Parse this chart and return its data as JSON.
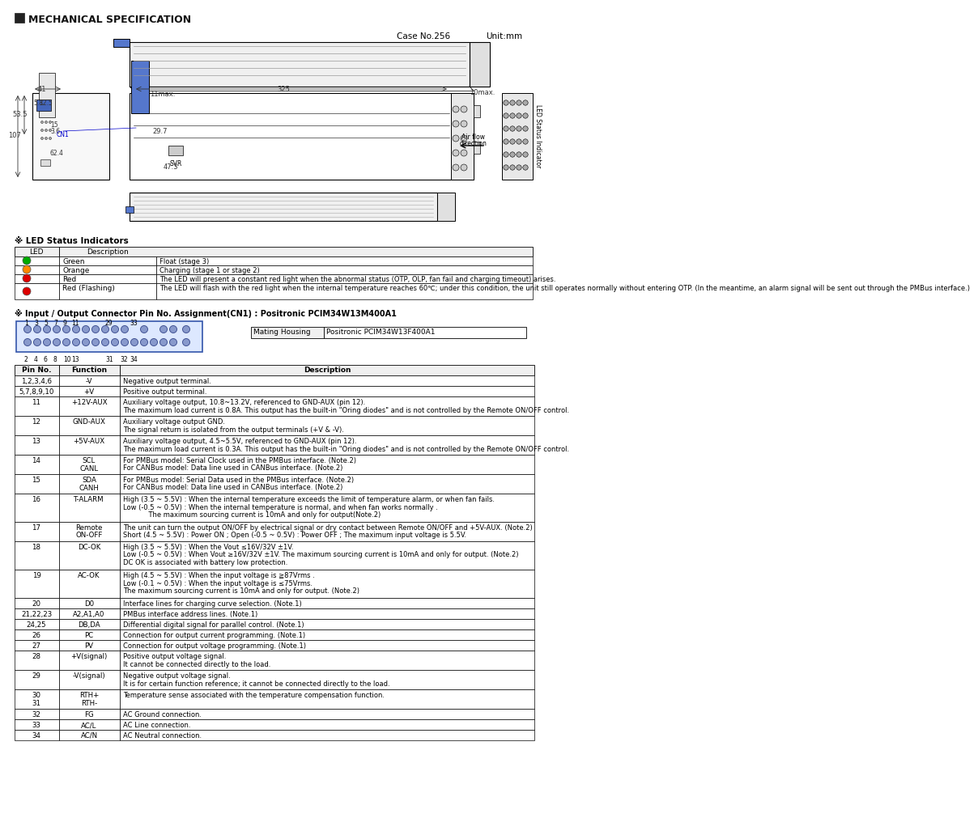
{
  "title": "MECHANICAL SPECIFICATION",
  "case_no": "Case No.256",
  "unit": "Unit:mm",
  "bg_color": "#ffffff",
  "header_bg": "#222222",
  "header_text_color": "#ffffff",
  "border_color": "#000000",
  "led_section_title": "※ LED Status Indicators",
  "led_rows": [
    {
      "color": "#00aa00",
      "name": "Green",
      "desc": "Float (stage 3)"
    },
    {
      "color": "#ff8800",
      "name": "Orange",
      "desc": "Charging (stage 1 or stage 2)"
    },
    {
      "color": "#dd0000",
      "name": "Red",
      "desc": "The LED will present a constant red light when the abnormal status (OTP, OLP, fan fail and charging timeout) arises."
    },
    {
      "color": "#dd0000",
      "name": "Red (Flashing)",
      "desc": "The LED will flash with the red light when the internal temperature reaches 60℃; under this condition, the unit still operates normally without entering OTP. (In the meantime, an alarm signal will be sent out through the PMBus interface.)"
    }
  ],
  "connector_title": "※ Input / Output Connector Pin No. Assignment(CN1) : Positronic PCIM34W13M400A1",
  "mating_housing_label": "Mating Housing",
  "mating_housing_value": "Positronic PCIM34W13F400A1",
  "pin_top_labels": [
    "1",
    "3",
    "5",
    "7",
    "9",
    "11",
    "",
    "29",
    "",
    "33"
  ],
  "pin_bottom_labels": [
    "2",
    "4",
    "6",
    "8",
    "10",
    "13",
    "",
    "31",
    "32",
    "",
    "34"
  ],
  "table_headers": [
    "Pin No.",
    "Function",
    "Description"
  ],
  "table_rows": [
    [
      "1,2,3,4,6",
      "-V",
      "Negative output terminal."
    ],
    [
      "5,7,8,9,10",
      "+V",
      "Positive output terminal."
    ],
    [
      "11",
      "+12V-AUX",
      "Auxiliary voltage output, 10.8~13.2V, referenced to GND-AUX (pin 12).\nThe maximum load current is 0.8A. This output has the built-in \"Oring diodes\" and is not controlled by the Remote ON/OFF control."
    ],
    [
      "12",
      "GND-AUX",
      "Auxiliary voltage output GND.\nThe signal return is isolated from the output terminals (+V & -V)."
    ],
    [
      "13",
      "+5V-AUX",
      "Auxiliary voltage output, 4.5~5.5V, referenced to GND-AUX (pin 12).\nThe maximum load current is 0.3A. This output has the built-in \"Oring diodes\" and is not controlled by the Remote ON/OFF control."
    ],
    [
      "14",
      "SCL\nCANL",
      "For PMBus model: Serial Clock used in the PMBus interface. (Note.2)\nFor CANBus model: Data line used in CANBus interface. (Note.2)"
    ],
    [
      "15",
      "SDA\nCANH",
      "For PMBus model: Serial Data used in the PMBus interface. (Note.2)\nFor CANBus model: Data line used in CANBus interface. (Note.2)"
    ],
    [
      "16",
      "T-ALARM",
      "High (3.5 ~ 5.5V) : When the internal temperature exceeds the limit of temperature alarm, or when fan fails.\nLow (-0.5 ~ 0.5V) : When the internal temperature is normal, and when fan works normally .\n            The maximum sourcing current is 10mA and only for output(Note.2)"
    ],
    [
      "17",
      "Remote\nON-OFF",
      "The unit can turn the output ON/OFF by electrical signal or dry contact between Remote ON/OFF and +5V-AUX. (Note.2)\nShort (4.5 ~ 5.5V) : Power ON ; Open (-0.5 ~ 0.5V) : Power OFF ; The maximum input voltage is 5.5V."
    ],
    [
      "18",
      "DC-OK",
      "High (3.5 ~ 5.5V) : When the Vout ≤16V/32V ±1V.\nLow (-0.5 ~ 0.5V) : When Vout ≥16V/32V ±1V. The maximum sourcing current is 10mA and only for output. (Note.2)\nDC OK is associated with battery low protection."
    ],
    [
      "19",
      "AC-OK",
      "High (4.5 ~ 5.5V) : When the input voltage is ≧87Vrms .\nLow (-0.1 ~ 0.5V) : When the input voltage is ≤75Vrms.\nThe maximum sourcing current is 10mA and only for output. (Note.2)"
    ],
    [
      "20",
      "D0",
      "Interface lines for charging curve selection. (Note.1)"
    ],
    [
      "21,22,23",
      "A2,A1,A0",
      "PMBus interface address lines. (Note.1)"
    ],
    [
      "24,25",
      "DB,DA",
      "Differential digital signal for parallel control. (Note.1)"
    ],
    [
      "26",
      "PC",
      "Connection for output current programming. (Note.1)"
    ],
    [
      "27",
      "PV",
      "Connection for output voltage programming. (Note.1)"
    ],
    [
      "28",
      "+V(signal)",
      "Positive output voltage signal.\nIt cannot be connected directly to the load."
    ],
    [
      "29",
      "-V(signal)",
      "Negative output voltage signal.\nIt is for certain function reference; it cannot be connected directly to the load."
    ],
    [
      "30\n31",
      "RTH+\nRTH-",
      "Temperature sense associated with the temperature compensation function."
    ],
    [
      "32",
      "FG",
      "AC Ground connection."
    ],
    [
      "33",
      "AC/L",
      "AC Line connection."
    ],
    [
      "34",
      "AC/N",
      "AC Neutral connection."
    ]
  ]
}
